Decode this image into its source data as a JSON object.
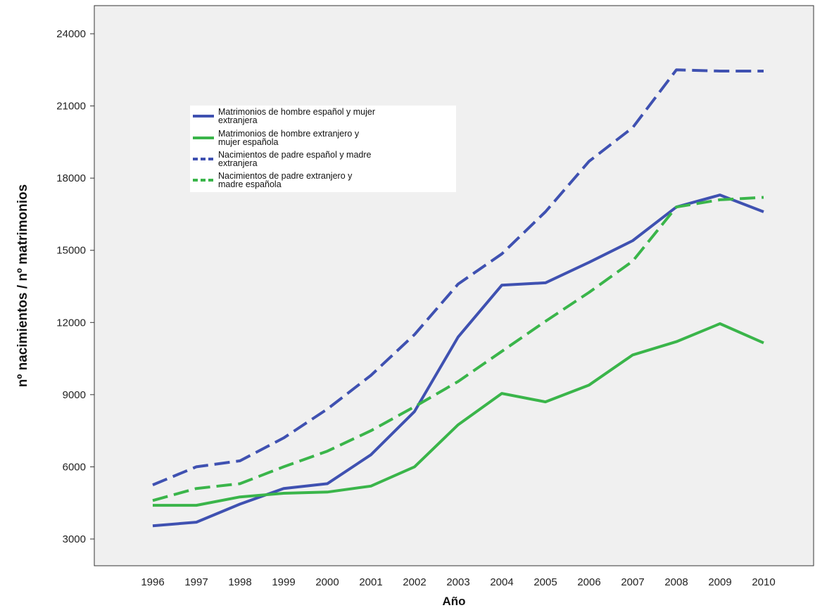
{
  "chart_data": {
    "type": "line",
    "xlabel": "Año",
    "ylabel": "nº nacimientos / nº matrimonios",
    "ylim": [
      2000,
      25000
    ],
    "yticks": [
      3000,
      6000,
      9000,
      12000,
      15000,
      18000,
      21000,
      24000
    ],
    "x": [
      "1996",
      "1997",
      "1998",
      "1999",
      "2000",
      "2001",
      "2002",
      "2003",
      "2004",
      "2005",
      "2006",
      "2007",
      "2008",
      "2009",
      "2010"
    ],
    "grid": false,
    "legend_position": "top-left",
    "series": [
      {
        "name": "Matrimonios de hombre español y mujer extranjera",
        "legend_lines": [
          "Matrimonios de hombre español y mujer",
          "extranjera"
        ],
        "color": "#3f51b1",
        "dash": "solid",
        "values": [
          3550,
          3700,
          4450,
          5100,
          5300,
          6500,
          8300,
          11400,
          13550,
          13650,
          14500,
          15400,
          16800,
          17300,
          16600
        ]
      },
      {
        "name": "Matrimonios de hombre extranjero y mujer española",
        "legend_lines": [
          "Matrimonios de hombre extranjero y",
          "mujer española"
        ],
        "color": "#3ab54a",
        "dash": "solid",
        "values": [
          4400,
          4400,
          4750,
          4900,
          4950,
          5200,
          6000,
          7750,
          9050,
          8700,
          9400,
          10650,
          11200,
          11950,
          11150
        ]
      },
      {
        "name": "Nacimientos de padre español y madre extranjera",
        "legend_lines": [
          "Nacimientos de padre español y madre",
          "extranjera"
        ],
        "color": "#3f51b1",
        "dash": "dashed",
        "values": [
          5250,
          6000,
          6250,
          7200,
          8400,
          9800,
          11500,
          13600,
          14850,
          16600,
          18700,
          20100,
          22500,
          22450,
          22450
        ]
      },
      {
        "name": "Nacimientos de padre extranjero y madre española",
        "legend_lines": [
          "Nacimientos de padre extranjero y",
          "madre española"
        ],
        "color": "#3ab54a",
        "dash": "dashed",
        "values": [
          4600,
          5100,
          5300,
          6000,
          6650,
          7500,
          8500,
          9550,
          10800,
          12050,
          13250,
          14550,
          16800,
          17100,
          17200
        ]
      }
    ]
  }
}
